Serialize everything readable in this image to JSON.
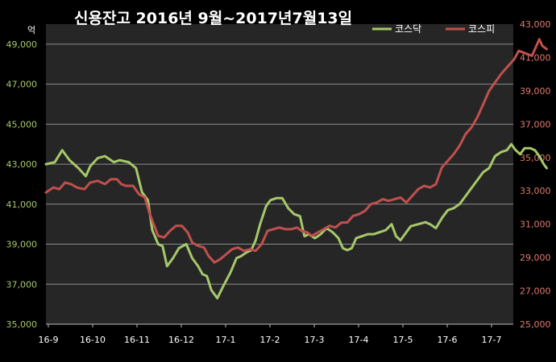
{
  "chart_data": {
    "type": "line",
    "title": "신용잔고  2016년 9월~2017년7월13일",
    "y_unit_label": "억",
    "x_tick_labels": [
      "16-9",
      "16-10",
      "16-11",
      "16-12",
      "17-1",
      "17-2",
      "17-3",
      "17-4",
      "17-5",
      "17-6",
      "17-7"
    ],
    "y_left": {
      "ticks": [
        "35,000",
        "37,000",
        "39,000",
        "41,000",
        "43,000",
        "45,000",
        "47,000",
        "49,000"
      ],
      "range": [
        35000,
        50000
      ]
    },
    "y_right": {
      "ticks": [
        "25,000",
        "27,000",
        "29,000",
        "31,000",
        "33,000",
        "35,000",
        "37,000",
        "39,000",
        "41,000",
        "43,000"
      ],
      "range": [
        25000,
        43000
      ]
    },
    "grid": true,
    "legend_position": "top-right",
    "series": [
      {
        "name": "코스닥",
        "axis": "left",
        "color": "#a6c86a",
        "points": [
          [
            0.0,
            43000
          ],
          [
            0.3,
            43100
          ],
          [
            0.55,
            43700
          ],
          [
            0.8,
            43200
          ],
          [
            1.1,
            42800
          ],
          [
            1.35,
            42400
          ],
          [
            1.5,
            42900
          ],
          [
            1.75,
            43300
          ],
          [
            2.0,
            43400
          ],
          [
            2.3,
            43100
          ],
          [
            2.5,
            43200
          ],
          [
            2.8,
            43100
          ],
          [
            3.05,
            42800
          ],
          [
            3.25,
            41600
          ],
          [
            3.45,
            41200
          ],
          [
            3.6,
            39700
          ],
          [
            3.8,
            39000
          ],
          [
            3.95,
            38900
          ],
          [
            4.1,
            37900
          ],
          [
            4.3,
            38300
          ],
          [
            4.5,
            38800
          ],
          [
            4.75,
            39000
          ],
          [
            4.95,
            38300
          ],
          [
            5.15,
            37900
          ],
          [
            5.3,
            37500
          ],
          [
            5.45,
            37400
          ],
          [
            5.6,
            36700
          ],
          [
            5.8,
            36300
          ],
          [
            6.0,
            36900
          ],
          [
            6.25,
            37600
          ],
          [
            6.45,
            38300
          ],
          [
            6.6,
            38400
          ],
          [
            6.8,
            38600
          ],
          [
            6.95,
            38700
          ],
          [
            7.1,
            39200
          ],
          [
            7.25,
            40000
          ],
          [
            7.45,
            40900
          ],
          [
            7.6,
            41200
          ],
          [
            7.8,
            41300
          ],
          [
            8.0,
            41300
          ],
          [
            8.2,
            40800
          ],
          [
            8.4,
            40500
          ],
          [
            8.6,
            40400
          ],
          [
            8.75,
            39400
          ],
          [
            8.9,
            39500
          ],
          [
            9.1,
            39300
          ],
          [
            9.3,
            39500
          ],
          [
            9.5,
            39800
          ],
          [
            9.7,
            39600
          ],
          [
            9.9,
            39300
          ],
          [
            10.05,
            38800
          ],
          [
            10.2,
            38700
          ],
          [
            10.35,
            38800
          ],
          [
            10.5,
            39300
          ],
          [
            10.7,
            39400
          ],
          [
            10.9,
            39500
          ],
          [
            11.1,
            39500
          ],
          [
            11.3,
            39600
          ],
          [
            11.5,
            39700
          ],
          [
            11.7,
            40000
          ],
          [
            11.85,
            39400
          ],
          [
            12.0,
            39200
          ],
          [
            12.15,
            39500
          ],
          [
            12.35,
            39900
          ],
          [
            12.6,
            40000
          ],
          [
            12.85,
            40100
          ],
          [
            13.0,
            40000
          ],
          [
            13.2,
            39800
          ],
          [
            13.4,
            40300
          ],
          [
            13.6,
            40700
          ],
          [
            13.8,
            40800
          ],
          [
            14.0,
            41000
          ],
          [
            14.2,
            41400
          ],
          [
            14.4,
            41800
          ],
          [
            14.6,
            42200
          ],
          [
            14.8,
            42600
          ],
          [
            15.0,
            42800
          ],
          [
            15.2,
            43400
          ],
          [
            15.4,
            43600
          ],
          [
            15.6,
            43700
          ],
          [
            15.75,
            44000
          ],
          [
            15.9,
            43700
          ],
          [
            16.05,
            43500
          ],
          [
            16.2,
            43800
          ],
          [
            16.4,
            43800
          ],
          [
            16.55,
            43700
          ],
          [
            16.7,
            43400
          ],
          [
            16.85,
            43000
          ],
          [
            16.95,
            42800
          ]
        ]
      },
      {
        "name": "코스피",
        "axis": "right",
        "color": "#c0504d",
        "points": [
          [
            0.0,
            32900
          ],
          [
            0.25,
            33200
          ],
          [
            0.45,
            33100
          ],
          [
            0.65,
            33500
          ],
          [
            0.85,
            33400
          ],
          [
            1.05,
            33200
          ],
          [
            1.3,
            33100
          ],
          [
            1.5,
            33500
          ],
          [
            1.75,
            33600
          ],
          [
            2.0,
            33400
          ],
          [
            2.2,
            33700
          ],
          [
            2.4,
            33700
          ],
          [
            2.55,
            33400
          ],
          [
            2.7,
            33300
          ],
          [
            2.95,
            33300
          ],
          [
            3.15,
            32800
          ],
          [
            3.35,
            32600
          ],
          [
            3.5,
            31700
          ],
          [
            3.6,
            31200
          ],
          [
            3.8,
            30300
          ],
          [
            4.0,
            30200
          ],
          [
            4.2,
            30600
          ],
          [
            4.4,
            30900
          ],
          [
            4.6,
            30900
          ],
          [
            4.8,
            30500
          ],
          [
            4.95,
            29900
          ],
          [
            5.15,
            29700
          ],
          [
            5.35,
            29600
          ],
          [
            5.5,
            29100
          ],
          [
            5.7,
            28700
          ],
          [
            5.9,
            28900
          ],
          [
            6.1,
            29200
          ],
          [
            6.3,
            29500
          ],
          [
            6.5,
            29600
          ],
          [
            6.7,
            29400
          ],
          [
            6.9,
            29500
          ],
          [
            7.1,
            29400
          ],
          [
            7.3,
            29800
          ],
          [
            7.5,
            30600
          ],
          [
            7.7,
            30700
          ],
          [
            7.9,
            30800
          ],
          [
            8.1,
            30700
          ],
          [
            8.3,
            30700
          ],
          [
            8.5,
            30800
          ],
          [
            8.65,
            30600
          ],
          [
            8.85,
            30500
          ],
          [
            9.0,
            30300
          ],
          [
            9.2,
            30500
          ],
          [
            9.4,
            30700
          ],
          [
            9.6,
            30900
          ],
          [
            9.8,
            30800
          ],
          [
            10.0,
            31100
          ],
          [
            10.2,
            31100
          ],
          [
            10.4,
            31500
          ],
          [
            10.6,
            31600
          ],
          [
            10.8,
            31800
          ],
          [
            11.0,
            32200
          ],
          [
            11.2,
            32300
          ],
          [
            11.4,
            32500
          ],
          [
            11.6,
            32400
          ],
          [
            11.8,
            32500
          ],
          [
            12.0,
            32600
          ],
          [
            12.2,
            32300
          ],
          [
            12.4,
            32700
          ],
          [
            12.6,
            33100
          ],
          [
            12.8,
            33300
          ],
          [
            13.0,
            33200
          ],
          [
            13.2,
            33400
          ],
          [
            13.4,
            34400
          ],
          [
            13.6,
            34800
          ],
          [
            13.8,
            35200
          ],
          [
            14.0,
            35700
          ],
          [
            14.2,
            36400
          ],
          [
            14.4,
            36800
          ],
          [
            14.6,
            37400
          ],
          [
            14.8,
            38200
          ],
          [
            15.0,
            39000
          ],
          [
            15.2,
            39500
          ],
          [
            15.4,
            40000
          ],
          [
            15.55,
            40300
          ],
          [
            15.7,
            40600
          ],
          [
            15.85,
            40900
          ],
          [
            16.0,
            41400
          ],
          [
            16.15,
            41300
          ],
          [
            16.3,
            41200
          ],
          [
            16.45,
            41100
          ],
          [
            16.6,
            41700
          ],
          [
            16.7,
            42100
          ],
          [
            16.8,
            41700
          ],
          [
            16.95,
            41500
          ]
        ]
      }
    ]
  }
}
